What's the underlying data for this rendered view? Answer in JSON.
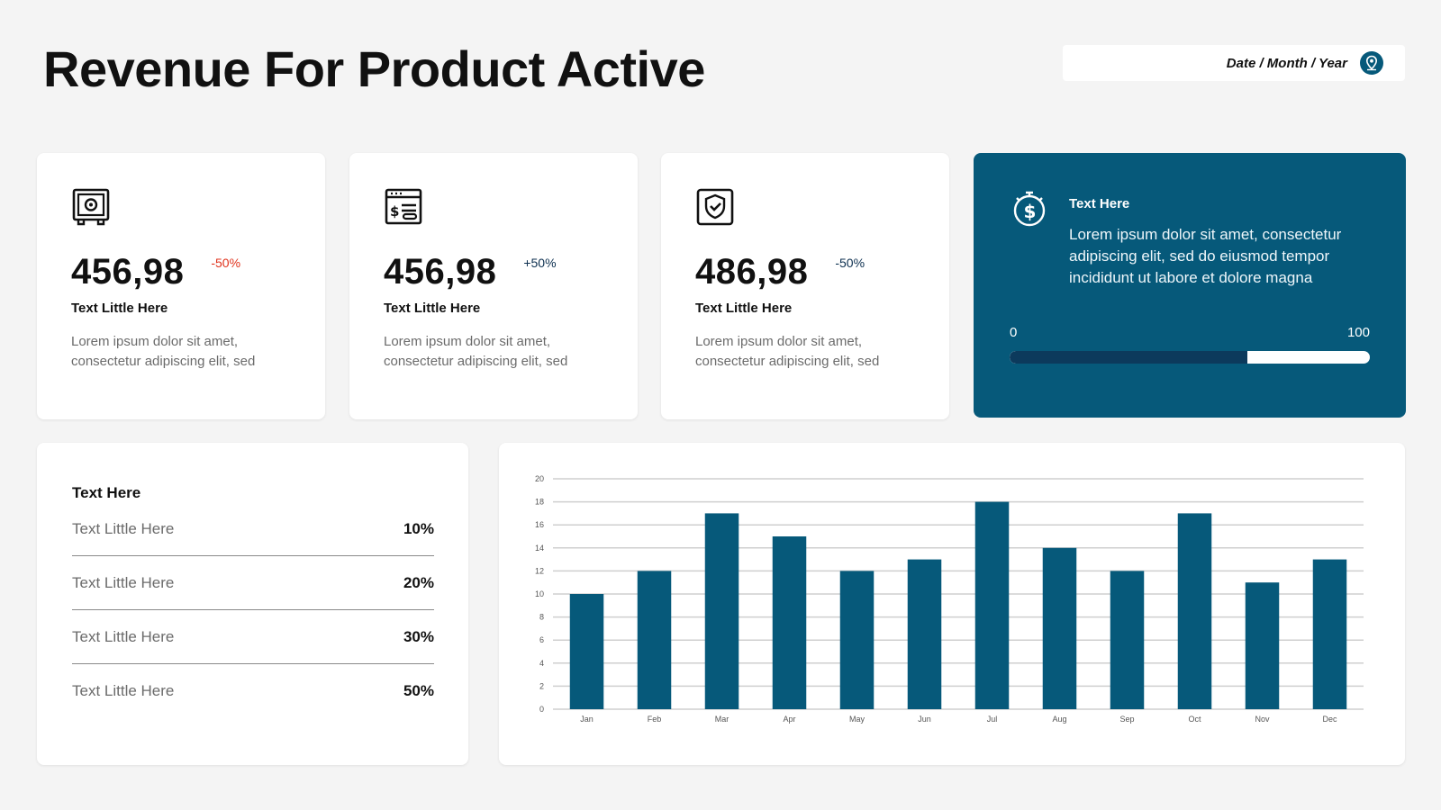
{
  "header": {
    "title": "Revenue For Product Active",
    "date_label": "Date / Month / Year"
  },
  "stats": [
    {
      "icon": "safe-icon",
      "value": "456,98",
      "change": "-50%",
      "change_color": "#e0321c",
      "label": "Text Little Here",
      "desc": "Lorem ipsum dolor sit amet, consectetur adipiscing elit, sed"
    },
    {
      "icon": "invoice-icon",
      "value": "456,98",
      "change": "+50%",
      "change_color": "#0c2f4f",
      "label": "Text Little Here",
      "desc": "Lorem ipsum dolor sit amet, consectetur adipiscing elit, sed"
    },
    {
      "icon": "shield-check-icon",
      "value": "486,98",
      "change": "-50%",
      "change_color": "#0c2f4f",
      "label": "Text Little Here",
      "desc": "Lorem ipsum dolor sit amet, consectetur adipiscing elit, sed"
    }
  ],
  "highlight": {
    "icon": "money-timer-icon",
    "title": "Text Here",
    "desc": "Lorem ipsum dolor sit amet, consectetur adipiscing elit, sed do eiusmod tempor incididunt ut labore et dolore magna",
    "range_min": "0",
    "range_max": "100",
    "progress": 0.66
  },
  "list": {
    "title": "Text Here",
    "rows": [
      {
        "label": "Text Little Here",
        "value": "10%"
      },
      {
        "label": "Text Little Here",
        "value": "20%"
      },
      {
        "label": "Text Little Here",
        "value": "30%"
      },
      {
        "label": "Text Little Here",
        "value": "50%"
      }
    ]
  },
  "colors": {
    "accent": "#06597a",
    "dark": "#0c3a5c",
    "negative": "#e0321c",
    "background": "#f4f4f4"
  },
  "chart_data": {
    "type": "bar",
    "categories": [
      "Jan",
      "Feb",
      "Mar",
      "Apr",
      "May",
      "Jun",
      "Jul",
      "Aug",
      "Sep",
      "Oct",
      "Nov",
      "Dec"
    ],
    "values": [
      10,
      12,
      17,
      15,
      12,
      13,
      18,
      14,
      12,
      17,
      11,
      13
    ],
    "yticks": [
      0,
      2,
      4,
      6,
      8,
      10,
      12,
      14,
      16,
      18,
      20
    ],
    "ylim": [
      0,
      20
    ],
    "grid": true,
    "color": "#06597a",
    "title": "",
    "xlabel": "",
    "ylabel": ""
  }
}
